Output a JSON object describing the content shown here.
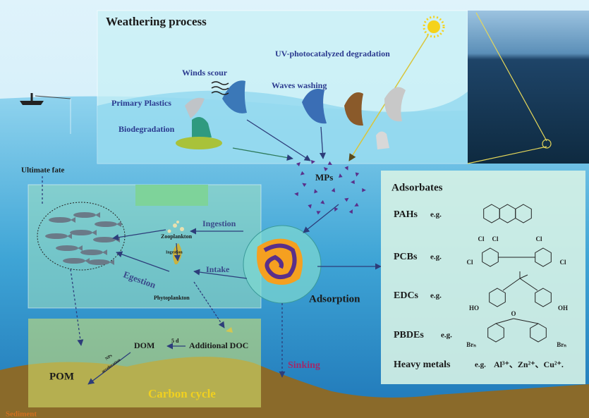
{
  "weathering": {
    "title": "Weathering process",
    "uv": "UV-photocatalyzed degradation",
    "winds": "Winds scour",
    "primary": "Primary Plastics",
    "waves": "Waves washing",
    "bio": "Biodegradation"
  },
  "fate": {
    "ultimate": "Ultimate fate",
    "mps": "MPs",
    "adsorption": "Adsorption",
    "sinking": "Sinking",
    "sediment": "Sediment"
  },
  "food_web": {
    "ingestion": "Ingestion",
    "zooplankton": "Zooplankton",
    "ingestion_small": "Ingestion",
    "intake": "Intake",
    "egestion": "Egestion",
    "phytoplankton": "Phytoplankton"
  },
  "carbon": {
    "additional_doc": "Additional DOC",
    "dom": "DOM",
    "days": "5 d",
    "nps": "NPs",
    "acceleration": "acceleration",
    "pom": "POM",
    "title": "Carbon cycle"
  },
  "adsorbates": {
    "title": "Adsorbates",
    "rows": [
      {
        "name": "PAHs",
        "eg": "e.g."
      },
      {
        "name": "PCBs",
        "eg": "e.g."
      },
      {
        "name": "EDCs",
        "eg": "e.g."
      },
      {
        "name": "PBDEs",
        "eg": "e.g."
      },
      {
        "name": "Heavy metals",
        "eg": "e.g.",
        "ions": "Al³⁺、Zn²⁺、Cu²⁺."
      }
    ],
    "atoms": [
      "Cl",
      "Cl",
      "Cl",
      "Cl",
      "Cl",
      "HO",
      "OH",
      "O",
      "Brₙ",
      "Brₙ"
    ]
  }
}
